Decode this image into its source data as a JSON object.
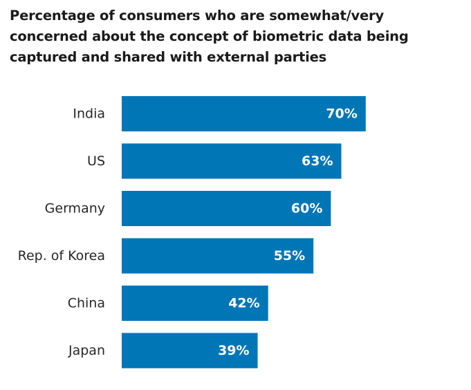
{
  "chart_data": {
    "type": "bar",
    "orientation": "horizontal",
    "title": "Percentage of consumers who are somewhat/very concerned about the concept of biometric data being captured and shared with external parties",
    "categories": [
      "India",
      "US",
      "Germany",
      "Rep. of Korea",
      "China",
      "Japan"
    ],
    "values": [
      70,
      63,
      60,
      55,
      42,
      39
    ],
    "value_labels": [
      "70%",
      "63%",
      "60%",
      "55%",
      "42%",
      "39%"
    ],
    "unit": "%",
    "xlim": [
      0,
      100
    ],
    "grid": false,
    "legend": "none",
    "bar_color": "#0076b6",
    "label_color": "#ffffff"
  }
}
